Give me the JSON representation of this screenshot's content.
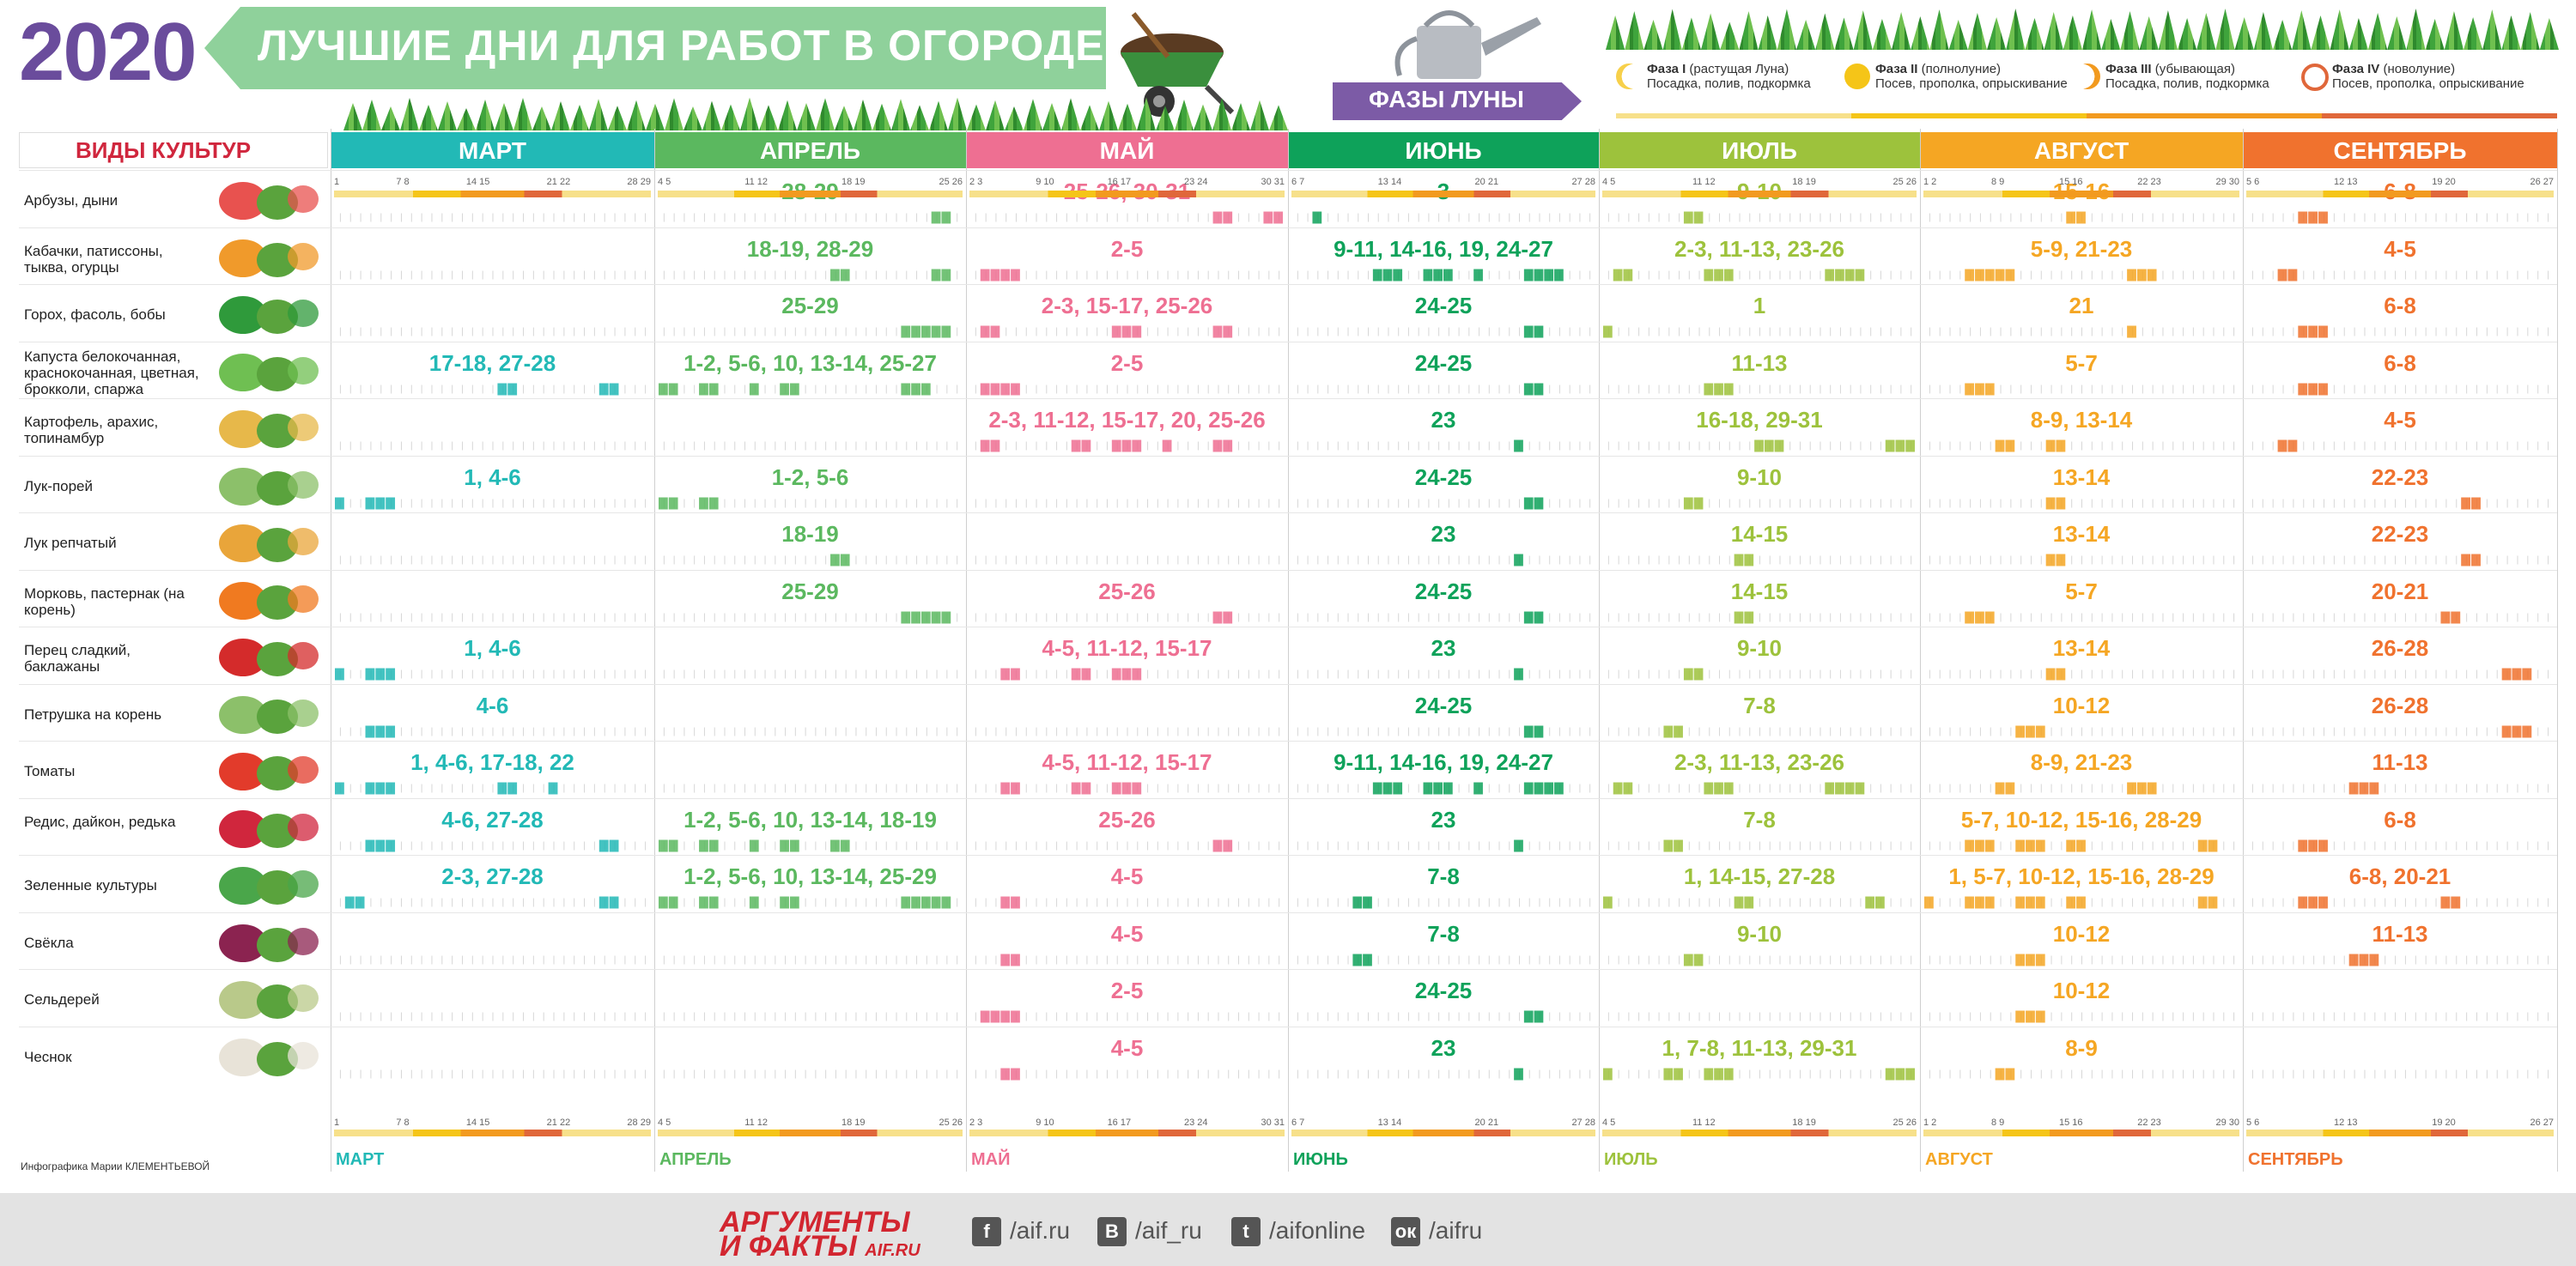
{
  "header": {
    "year": "2020",
    "title": "ЛУЧШИЕ ДНИ ДЛЯ РАБОТ В ОГОРОДЕ",
    "moon_phases_title": "ФАЗЫ ЛУНЫ"
  },
  "legend": [
    {
      "name": "Фаза I",
      "desc": "(растущая Луна)",
      "action": "Посадка, полив, подкормка",
      "icon": "waxing-moon-icon",
      "color": "#f7d04a"
    },
    {
      "name": "Фаза II",
      "desc": "(полнолуние)",
      "action": "Посев, прополка, опрыскивание",
      "icon": "full-moon-icon",
      "color": "#f5c518"
    },
    {
      "name": "Фаза III",
      "desc": "(убывающая)",
      "action": "Посадка, полив, подкормка",
      "icon": "waning-moon-icon",
      "color": "#f29a1f"
    },
    {
      "name": "Фаза IV",
      "desc": "(новолуние)",
      "action": "Посев, прополка, опрыскивание",
      "icon": "new-moon-icon",
      "color": "#e0673a"
    }
  ],
  "crops_header": "ВИДЫ КУЛЬТУР",
  "months": [
    {
      "name": "МАРТ",
      "color": "#22b9b6",
      "ticks": "1|7 8|14 15|21 22|28 29"
    },
    {
      "name": "АПРЕЛЬ",
      "color": "#5bb85f",
      "ticks": "4 5|11 12|18 19|25 26"
    },
    {
      "name": "МАЙ",
      "color": "#ee6f92",
      "ticks": "2 3|9 10|16 17|23 24|30 31"
    },
    {
      "name": "ИЮНЬ",
      "color": "#0ea25a",
      "ticks": "6 7|13 14|20 21|27 28"
    },
    {
      "name": "ИЮЛЬ",
      "color": "#9dc23c",
      "ticks": "4 5|11 12|18 19|25 26"
    },
    {
      "name": "АВГУСТ",
      "color": "#f5a623",
      "ticks": "1 2|8 9|15 16|22 23|29 30"
    },
    {
      "name": "СЕНТЯБРЬ",
      "color": "#f0722e",
      "ticks": "5 6|12 13|19 20|26 27"
    }
  ],
  "crops": [
    {
      "name": "Арбузы, дыни",
      "icon": "watermelon-melon-icon",
      "days": [
        "",
        "28-29",
        "25-26, 30-31",
        "3",
        "9-10",
        "15-16",
        "6-8"
      ]
    },
    {
      "name": "Кабачки, патиссоны, тыква, огурцы",
      "icon": "zucchini-pumpkin-icon",
      "days": [
        "",
        "18-19, 28-29",
        "2-5",
        "9-11, 14-16, 19, 24-27",
        "2-3, 11-13, 23-26",
        "5-9, 21-23",
        "4-5"
      ]
    },
    {
      "name": "Горох, фасоль, бобы",
      "icon": "peas-beans-icon",
      "days": [
        "",
        "25-29",
        "2-3, 15-17, 25-26",
        "24-25",
        "1",
        "21",
        "6-8"
      ]
    },
    {
      "name": "Капуста белокочанная, краснокочанная, цветная, брокколи, спаржа",
      "icon": "cabbage-icon",
      "days": [
        "17-18, 27-28",
        "1-2, 5-6, 10, 13-14, 25-27",
        "2-5",
        "24-25",
        "11-13",
        "5-7",
        "6-8"
      ]
    },
    {
      "name": "Картофель, арахис, топинамбур",
      "icon": "potato-icon",
      "days": [
        "",
        "",
        "2-3, 11-12, 15-17, 20, 25-26",
        "23",
        "16-18, 29-31",
        "8-9, 13-14",
        "4-5"
      ]
    },
    {
      "name": "Лук-порей",
      "icon": "leek-icon",
      "days": [
        "1, 4-6",
        "1-2, 5-6",
        "",
        "24-25",
        "9-10",
        "13-14",
        "22-23"
      ]
    },
    {
      "name": "Лук репчатый",
      "icon": "onion-icon",
      "days": [
        "",
        "18-19",
        "",
        "23",
        "14-15",
        "13-14",
        "22-23"
      ]
    },
    {
      "name": "Морковь, пастернак (на корень)",
      "icon": "carrot-icon",
      "days": [
        "",
        "25-29",
        "25-26",
        "24-25",
        "14-15",
        "5-7",
        "20-21"
      ]
    },
    {
      "name": "Перец сладкий, баклажаны",
      "icon": "pepper-icon",
      "days": [
        "1, 4-6",
        "",
        "4-5, 11-12, 15-17",
        "23",
        "9-10",
        "13-14",
        "26-28"
      ]
    },
    {
      "name": "Петрушка на корень",
      "icon": "parsley-root-icon",
      "days": [
        "4-6",
        "",
        "",
        "24-25",
        "7-8",
        "10-12",
        "26-28"
      ]
    },
    {
      "name": "Томаты",
      "icon": "tomato-icon",
      "days": [
        "1, 4-6, 17-18, 22",
        "",
        "4-5, 11-12, 15-17",
        "9-11, 14-16, 19, 24-27",
        "2-3, 11-13, 23-26",
        "8-9, 21-23",
        "11-13"
      ]
    },
    {
      "name": "Редис, дайкон, редька",
      "icon": "radish-icon",
      "days": [
        "4-6, 27-28",
        "1-2, 5-6, 10, 13-14, 18-19",
        "25-26",
        "23",
        "7-8",
        "5-7, 10-12, 15-16, 28-29",
        "6-8"
      ]
    },
    {
      "name": "Зеленные культуры",
      "icon": "greens-icon",
      "days": [
        "2-3, 27-28",
        "1-2, 5-6, 10, 13-14, 25-29",
        "4-5",
        "7-8",
        "1, 14-15, 27-28",
        "1, 5-7, 10-12, 15-16, 28-29",
        "6-8, 20-21"
      ]
    },
    {
      "name": "Свёкла",
      "icon": "beet-icon",
      "days": [
        "",
        "",
        "4-5",
        "7-8",
        "9-10",
        "10-12",
        "11-13"
      ]
    },
    {
      "name": "Сельдерей",
      "icon": "celery-icon",
      "days": [
        "",
        "",
        "2-5",
        "24-25",
        "",
        "10-12",
        ""
      ]
    },
    {
      "name": "Чеснок",
      "icon": "garlic-icon",
      "days": [
        "",
        "",
        "4-5",
        "23",
        "1, 7-8, 11-13, 29-31",
        "8-9",
        ""
      ]
    }
  ],
  "credit": "Инфографика Марии КЛЕМЕНТЬЕВОЙ",
  "footer": {
    "brand_line1": "АРГУМЕНТЫ",
    "brand_line2": "И ФАКТЫ",
    "brand_site": "AIF.RU",
    "social": [
      {
        "icon": "facebook-icon",
        "glyph": "f",
        "handle": "/aif.ru"
      },
      {
        "icon": "vk-icon",
        "glyph": "В",
        "handle": "/aif_ru"
      },
      {
        "icon": "twitter-icon",
        "glyph": "t",
        "handle": "/aifonline"
      },
      {
        "icon": "odnoklassniki-icon",
        "glyph": "ок",
        "handle": "/aifru"
      }
    ]
  }
}
